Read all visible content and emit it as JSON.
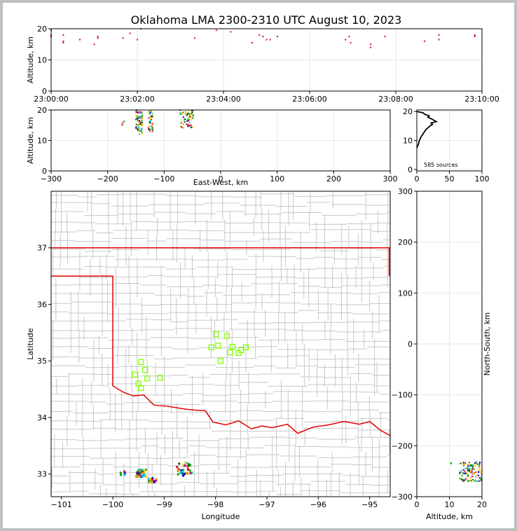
{
  "title": "Oklahoma LMA 2300-2310 UTC August 10, 2023",
  "colors": {
    "state_border": "#e00000",
    "county_lines": "#c8c8c8",
    "station_marker": "#7fff00",
    "grid": "#e6e6e6"
  },
  "chart_data": [
    {
      "panel": "time-altitude",
      "type": "scatter",
      "ylabel": "Altitude, km",
      "ylim": [
        0,
        20
      ],
      "yticks": [
        "0",
        "10",
        "20"
      ],
      "xlim": [
        "23:00:00",
        "23:10:00"
      ],
      "xticks": [
        "23:00:00",
        "23:02:00",
        "23:04:00",
        "23:06:00",
        "23:08:00",
        "23:10:00"
      ],
      "points": [
        {
          "t": "23:00:00",
          "alt": 19.5,
          "c": "#cc0066"
        },
        {
          "t": "23:00:00",
          "alt": 18.0,
          "c": "#cc0066"
        },
        {
          "t": "23:00:00",
          "alt": 17.5,
          "c": "#cc0066"
        },
        {
          "t": "23:00:17",
          "alt": 18.0,
          "c": "#cc0066"
        },
        {
          "t": "23:00:17",
          "alt": 16.0,
          "c": "#cc0066"
        },
        {
          "t": "23:00:17",
          "alt": 15.5,
          "c": "#cc0066"
        },
        {
          "t": "23:00:40",
          "alt": 16.5,
          "c": "#cc0066"
        },
        {
          "t": "23:01:00",
          "alt": 15.0,
          "c": "#cc0066"
        },
        {
          "t": "23:01:05",
          "alt": 17.5,
          "c": "#cc0066"
        },
        {
          "t": "23:01:05",
          "alt": 17.0,
          "c": "#cc0066"
        },
        {
          "t": "23:01:40",
          "alt": 17.0,
          "c": "#cc0066"
        },
        {
          "t": "23:01:50",
          "alt": 18.5,
          "c": "#cc0066"
        },
        {
          "t": "23:02:00",
          "alt": 16.5,
          "c": "#cc0066"
        },
        {
          "t": "23:02:05",
          "alt": 20.0,
          "c": "#cc0066"
        },
        {
          "t": "23:03:20",
          "alt": 17.0,
          "c": "#cc0066"
        },
        {
          "t": "23:03:50",
          "alt": 19.5,
          "c": "#cc0066"
        },
        {
          "t": "23:04:10",
          "alt": 19.0,
          "c": "#cc0066"
        },
        {
          "t": "23:04:40",
          "alt": 15.5,
          "c": "#cc0066"
        },
        {
          "t": "23:04:50",
          "alt": 18.0,
          "c": "#cc0066"
        },
        {
          "t": "23:04:55",
          "alt": 17.5,
          "c": "#cc0066"
        },
        {
          "t": "23:05:00",
          "alt": 16.5,
          "c": "#cc0066"
        },
        {
          "t": "23:05:05",
          "alt": 16.5,
          "c": "#cc0066"
        },
        {
          "t": "23:05:15",
          "alt": 17.5,
          "c": "#cc0066"
        },
        {
          "t": "23:06:50",
          "alt": 16.5,
          "c": "#cc0066"
        },
        {
          "t": "23:06:55",
          "alt": 17.5,
          "c": "#cc0066"
        },
        {
          "t": "23:06:57",
          "alt": 15.5,
          "c": "#cc0066"
        },
        {
          "t": "23:07:25",
          "alt": 15.0,
          "c": "#cc0066"
        },
        {
          "t": "23:07:25",
          "alt": 14.0,
          "c": "#cc0066"
        },
        {
          "t": "23:07:45",
          "alt": 17.5,
          "c": "#cc0066"
        },
        {
          "t": "23:08:40",
          "alt": 16.0,
          "c": "#cc0066"
        },
        {
          "t": "23:09:00",
          "alt": 18.0,
          "c": "#cc0066"
        },
        {
          "t": "23:09:00",
          "alt": 16.5,
          "c": "#cc0066"
        },
        {
          "t": "23:09:50",
          "alt": 18.0,
          "c": "#cc0066"
        },
        {
          "t": "23:09:50",
          "alt": 17.5,
          "c": "#cc0066"
        }
      ]
    },
    {
      "panel": "east-west-altitude",
      "type": "scatter",
      "xlabel": "East-West, km",
      "ylabel": "Altitude, km",
      "xlim": [
        -300,
        300
      ],
      "xticks": [
        "−300",
        "−200",
        "−100",
        "0",
        "100",
        "200",
        "300"
      ],
      "ylim": [
        0,
        20
      ],
      "yticks": [
        "0",
        "10",
        "20"
      ],
      "clusters": [
        {
          "x": [
            -150,
            -138
          ],
          "alt": [
            12,
            20
          ],
          "n": 70
        },
        {
          "x": [
            -128,
            -120
          ],
          "alt": [
            13,
            20
          ],
          "n": 40
        },
        {
          "x": [
            -72,
            -48
          ],
          "alt": [
            14,
            20
          ],
          "n": 60
        },
        {
          "x": [
            -175,
            -170
          ],
          "alt": [
            15,
            17
          ],
          "n": 4
        }
      ]
    },
    {
      "panel": "altitude-histogram",
      "type": "line",
      "annotation": "585 sources",
      "xlim": [
        0,
        100
      ],
      "xticks": [
        "0",
        "50",
        "100"
      ],
      "ylim": [
        0,
        20
      ],
      "yticks": [
        "0",
        "10",
        "20"
      ],
      "x": [
        0,
        1,
        2,
        3,
        3,
        4,
        5,
        6,
        7,
        9,
        10,
        12,
        13,
        15,
        18,
        20,
        24,
        22,
        30,
        26,
        22,
        17,
        19,
        12,
        10,
        0
      ],
      "y": [
        7.5,
        8.0,
        8.5,
        9.0,
        9.5,
        10.0,
        10.5,
        11.0,
        11.5,
        12.0,
        12.5,
        13.0,
        13.5,
        14.0,
        14.5,
        15.0,
        15.5,
        16.0,
        16.5,
        17.0,
        17.5,
        18.0,
        18.5,
        19.0,
        19.5,
        20.0
      ]
    },
    {
      "panel": "map",
      "type": "scatter",
      "xlabel": "Longitude",
      "ylabel": "Latitude",
      "xlim": [
        -101.2,
        -94.6
      ],
      "ylim": [
        32.6,
        38.0
      ],
      "xticks": [
        "−101",
        "−100",
        "−99",
        "−98",
        "−97",
        "−96",
        "−95"
      ],
      "yticks": [
        "33",
        "34",
        "35",
        "36",
        "37"
      ],
      "stations": [
        [
          -97.99,
          35.47
        ],
        [
          -97.78,
          35.44
        ],
        [
          -98.08,
          35.24
        ],
        [
          -97.95,
          35.27
        ],
        [
          -97.67,
          35.25
        ],
        [
          -97.41,
          35.24
        ],
        [
          -97.5,
          35.19
        ],
        [
          -97.55,
          35.14
        ],
        [
          -97.72,
          35.15
        ],
        [
          -97.9,
          35.0
        ],
        [
          -99.45,
          34.98
        ],
        [
          -99.37,
          34.84
        ],
        [
          -99.57,
          34.76
        ],
        [
          -99.33,
          34.69
        ],
        [
          -99.08,
          34.7
        ],
        [
          -99.5,
          34.6
        ],
        [
          -99.45,
          34.52
        ]
      ],
      "source_clusters": [
        {
          "lon": [
            -99.55,
            -99.35
          ],
          "lat": [
            32.95,
            33.08
          ],
          "n": 40
        },
        {
          "lon": [
            -99.3,
            -99.15
          ],
          "lat": [
            32.85,
            32.93
          ],
          "n": 20
        },
        {
          "lon": [
            -98.75,
            -98.45
          ],
          "lat": [
            32.95,
            33.22
          ],
          "n": 35
        },
        {
          "lon": [
            -99.85,
            -99.75
          ],
          "lat": [
            32.98,
            33.05
          ],
          "n": 6
        }
      ]
    },
    {
      "panel": "altitude-north-south",
      "type": "scatter",
      "xlabel": "Altitude, km",
      "ylabel": "North-South, km",
      "xlim": [
        0,
        20
      ],
      "xticks": [
        "0",
        "10",
        "20"
      ],
      "ylim": [
        -300,
        300
      ],
      "yticks": [
        "−300",
        "−200",
        "−100",
        "0",
        "100",
        "200",
        "300"
      ],
      "clusters": [
        {
          "alt": [
            13,
            20
          ],
          "ns": [
            -270,
            -232
          ],
          "n": 120
        },
        {
          "alt": [
            10,
            11
          ],
          "ns": [
            -236,
            -232
          ],
          "n": 2
        }
      ]
    }
  ]
}
